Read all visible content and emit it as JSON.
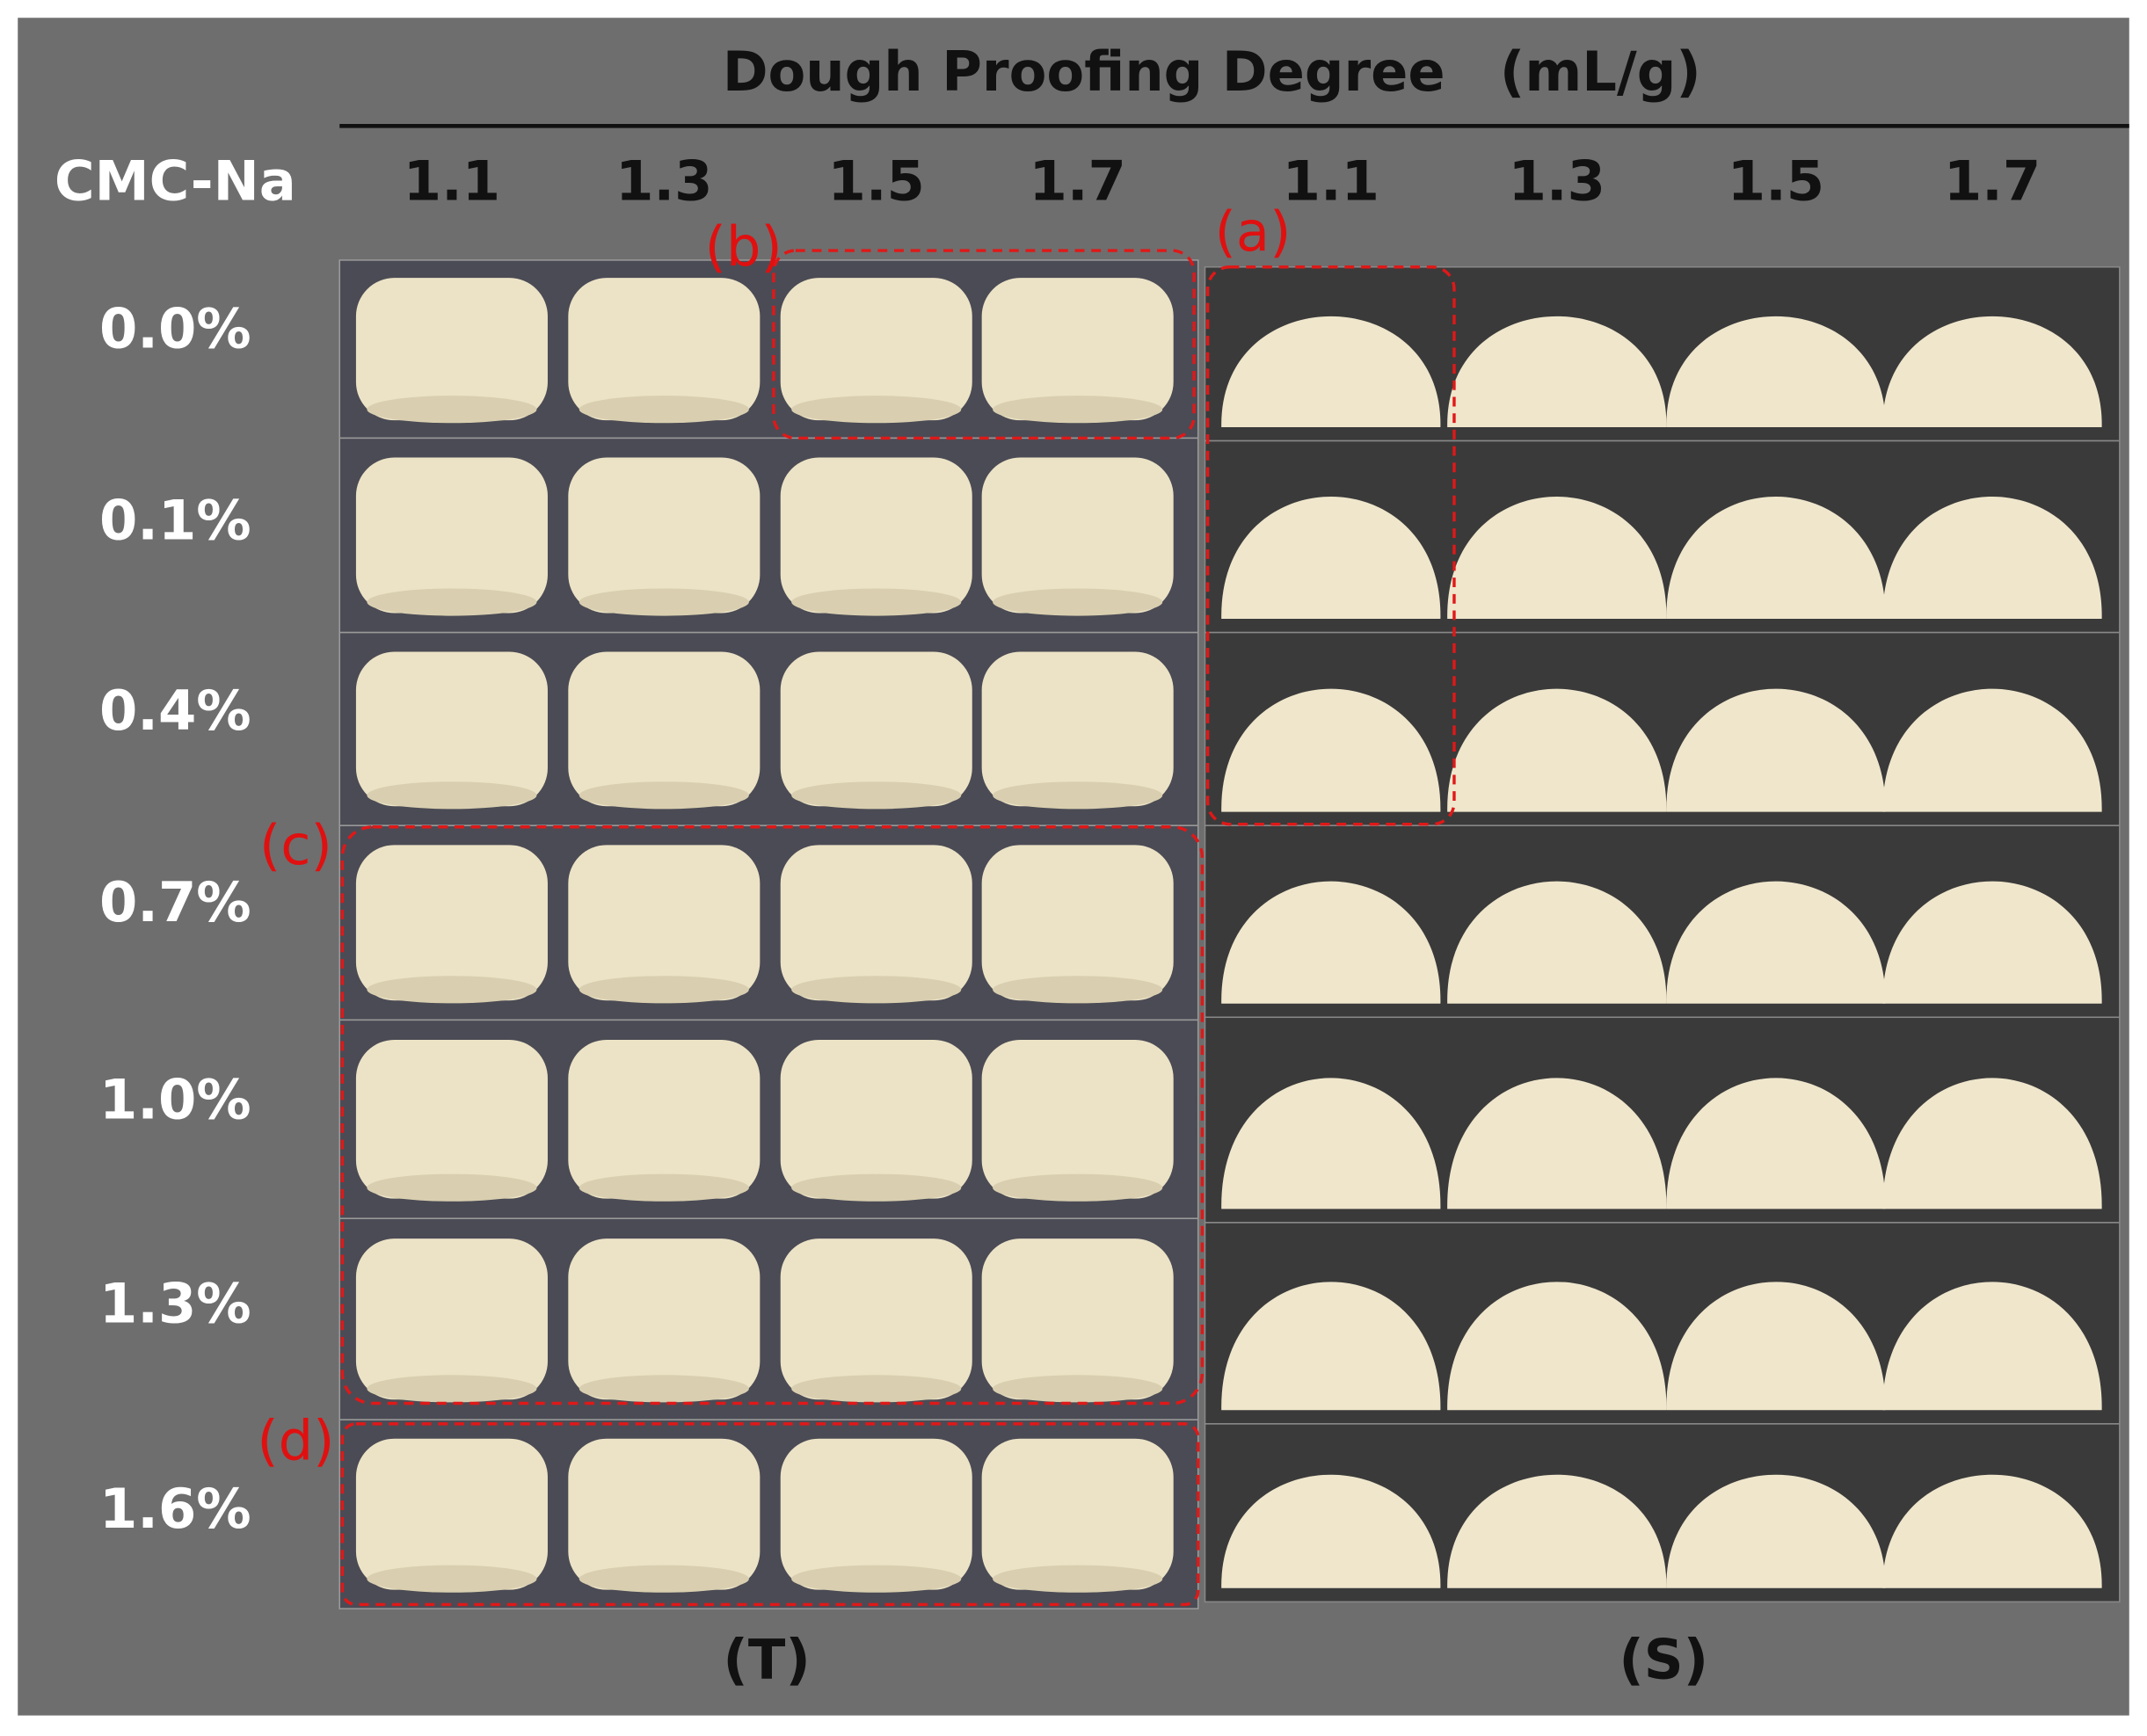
{
  "header": {
    "title": "Dough Proofing Degree　(mL/g)",
    "row_title": "CMC-Na"
  },
  "columns": {
    "T": [
      "1.1",
      "1.3",
      "1.5",
      "1.7"
    ],
    "S": [
      "1.1",
      "1.3",
      "1.5",
      "1.7"
    ]
  },
  "rows": [
    "0.0%",
    "0.1%",
    "0.4%",
    "0.7%",
    "1.0%",
    "1.3%",
    "1.6%"
  ],
  "annotations": {
    "a": "(a)",
    "b": "(b)",
    "c": "(c)",
    "d": "(d)"
  },
  "panels": {
    "T": "(T)",
    "S": "(S)"
  }
}
